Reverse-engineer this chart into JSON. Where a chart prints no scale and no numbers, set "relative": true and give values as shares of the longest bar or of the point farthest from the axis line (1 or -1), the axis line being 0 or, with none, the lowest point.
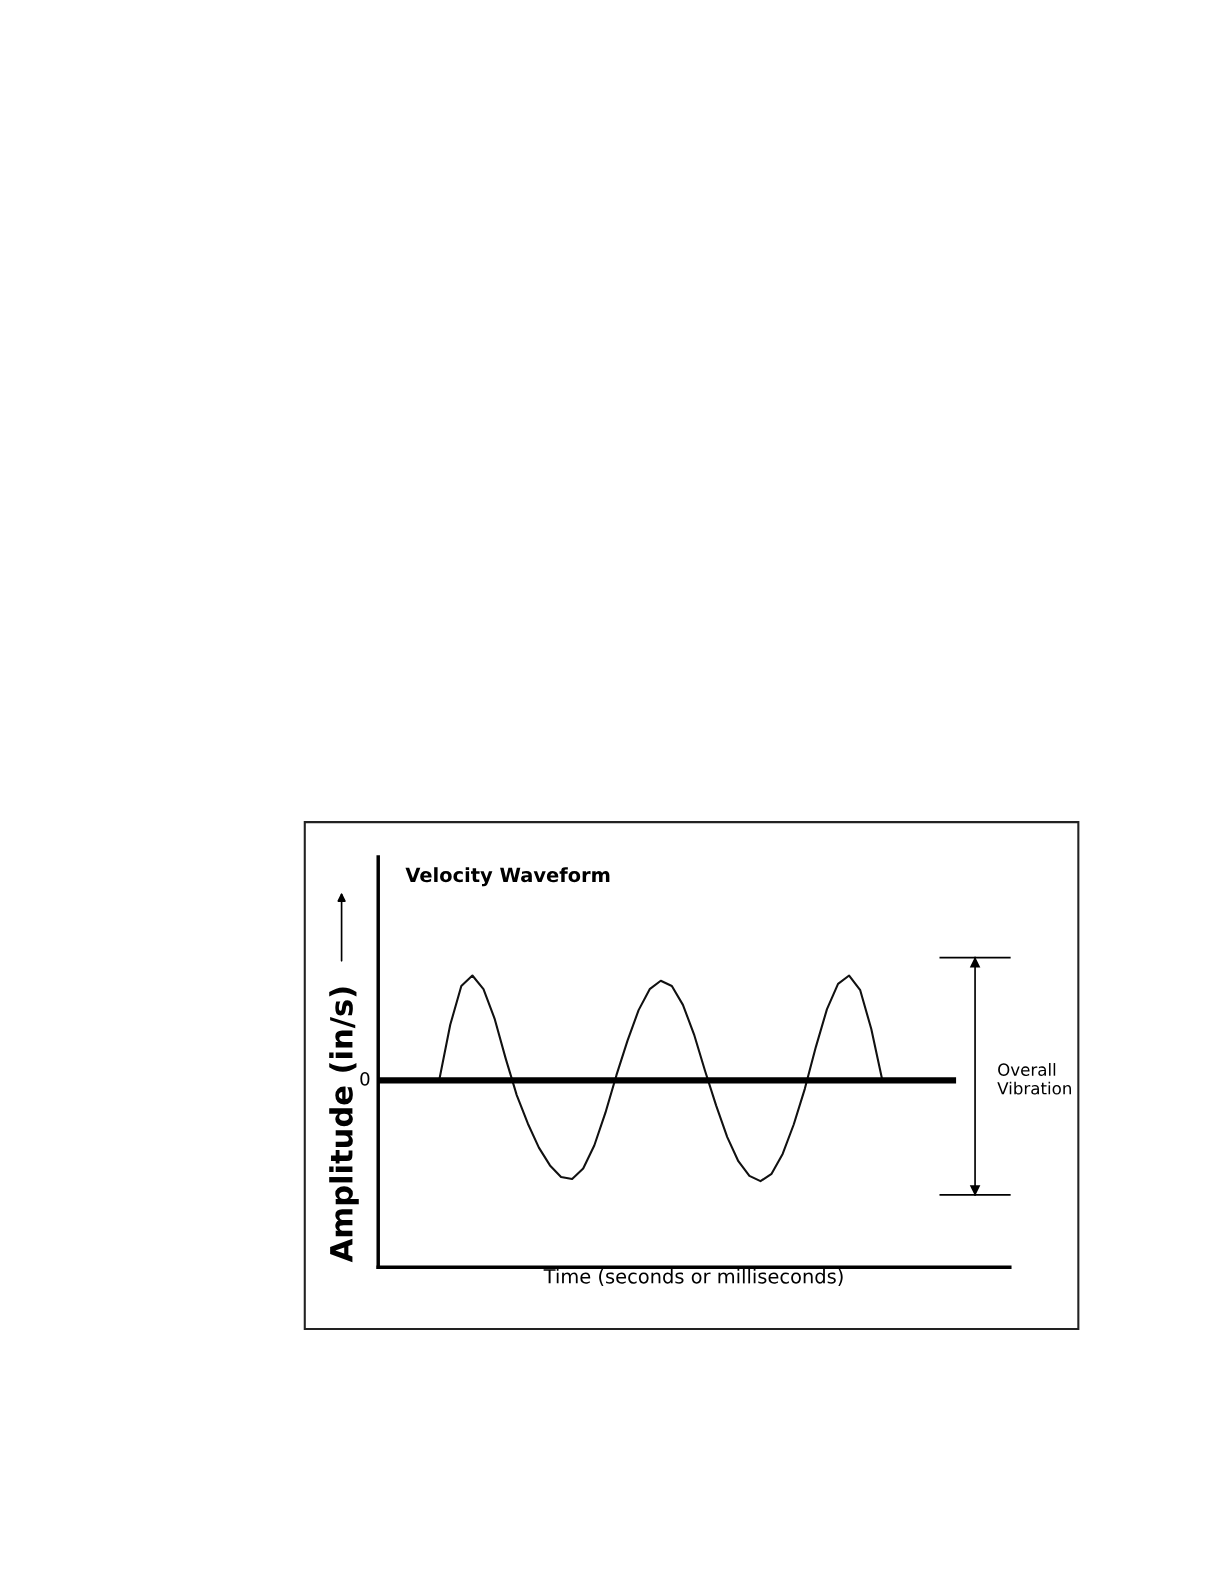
{
  "chart_data": {
    "type": "line",
    "title": "Velocity Waveform",
    "xlabel": "Time (seconds or milliseconds)",
    "ylabel": "Amplitude (in/s)",
    "relative": true,
    "categories": [
      null,
      null,
      null,
      null,
      null,
      null,
      null,
      null,
      null,
      null,
      null,
      null,
      null,
      null,
      null,
      null,
      null,
      null,
      null,
      null,
      null,
      null,
      null,
      null,
      null,
      null,
      null,
      null,
      null,
      null,
      null,
      null,
      null,
      null,
      null,
      null,
      null,
      null,
      null,
      null,
      null,
      null,
      null,
      null,
      null,
      null,
      null,
      null,
      null,
      null,
      null,
      null,
      null,
      null,
      null,
      null,
      null
    ],
    "series": [
      {
        "color": "#111111",
        "values": [
          null,
          null,
          null,
          null,
          null,
          0,
          0.53,
          0.9,
          1.0,
          0.87,
          0.59,
          0.21,
          -0.14,
          -0.41,
          -0.64,
          -0.81,
          -0.92,
          -0.94,
          -0.84,
          -0.62,
          -0.31,
          0.05,
          0.38,
          0.67,
          0.87,
          0.95,
          0.9,
          0.72,
          0.44,
          0.09,
          -0.24,
          -0.54,
          -0.77,
          -0.91,
          -0.96,
          -0.89,
          -0.7,
          -0.42,
          -0.08,
          0.32,
          0.68,
          0.92,
          1.0,
          0.86,
          0.49,
          0,
          null,
          null,
          null,
          null,
          null,
          null,
          null,
          null,
          null,
          null,
          null
        ]
      }
    ],
    "ref_lines": [
      {
        "axis": "y",
        "value": 0,
        "label": "0",
        "color": "#000000"
      }
    ],
    "annotations": [
      "Overall\nVibration"
    ],
    "grid": false,
    "legend": false,
    "marker": "none",
    "line_style": "solid"
  }
}
